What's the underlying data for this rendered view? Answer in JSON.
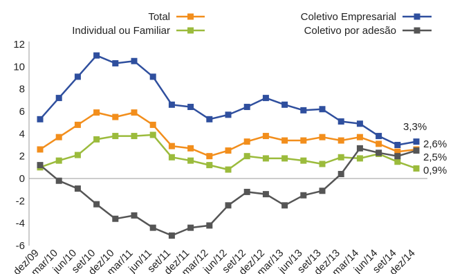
{
  "chart_data": {
    "type": "line",
    "categories": [
      "dez/09",
      "mar/10",
      "jun/10",
      "set/10",
      "dez/10",
      "mar/11",
      "jun/11",
      "set/11",
      "dez/11",
      "mar/12",
      "jun/12",
      "set/12",
      "dez/12",
      "mar/13",
      "jun/13",
      "set/13",
      "dez/13",
      "mar/14",
      "jun/14",
      "set/14",
      "dez/14"
    ],
    "ylim": [
      -6,
      12
    ],
    "yticks": [
      -6,
      -4,
      -2,
      0,
      2,
      4,
      6,
      8,
      10,
      12
    ],
    "series": [
      {
        "name": "Total",
        "color": "#f28e1c",
        "values": [
          2.6,
          3.7,
          4.8,
          5.9,
          5.5,
          5.9,
          4.8,
          2.9,
          2.7,
          2.0,
          2.5,
          3.3,
          3.8,
          3.4,
          3.4,
          3.7,
          3.4,
          3.7,
          3.1,
          2.4,
          2.6
        ]
      },
      {
        "name": "Individual ou Familiar",
        "color": "#9bbb3c",
        "values": [
          1.0,
          1.6,
          2.1,
          3.5,
          3.8,
          3.8,
          3.9,
          1.9,
          1.6,
          1.2,
          0.8,
          2.0,
          1.8,
          1.8,
          1.6,
          1.3,
          1.9,
          1.8,
          2.2,
          1.5,
          0.9
        ]
      },
      {
        "name": "Coletivo Empresarial",
        "color": "#2f4f9e",
        "values": [
          5.3,
          7.2,
          9.1,
          11.0,
          10.3,
          10.5,
          9.1,
          6.6,
          6.4,
          5.3,
          5.7,
          6.4,
          7.2,
          6.6,
          6.1,
          6.2,
          5.1,
          4.9,
          3.8,
          3.0,
          3.3
        ]
      },
      {
        "name": "Coletivo por adesão",
        "color": "#555555",
        "values": [
          1.2,
          -0.2,
          -0.9,
          -2.3,
          -3.6,
          -3.3,
          -4.4,
          -5.1,
          -4.4,
          -4.2,
          -2.4,
          -1.2,
          -1.4,
          -2.4,
          -1.5,
          -1.1,
          0.4,
          2.7,
          2.3,
          2.0,
          2.5
        ]
      }
    ],
    "end_labels": [
      {
        "series": "Coletivo Empresarial",
        "text": "3,3%"
      },
      {
        "series": "Total",
        "text": "2,6%"
      },
      {
        "series": "Coletivo por adesão",
        "text": "2,5%"
      },
      {
        "series": "Individual ou Familiar",
        "text": "0,9%"
      }
    ],
    "legend": [
      {
        "series": "Total",
        "text": "Total"
      },
      {
        "series": "Individual ou Familiar",
        "text": "Individual ou Familiar"
      },
      {
        "series": "Coletivo Empresarial",
        "text": "Coletivo Empresarial"
      },
      {
        "series": "Coletivo por adesão",
        "text": "Coletivo por adesão"
      }
    ],
    "grid": false
  }
}
